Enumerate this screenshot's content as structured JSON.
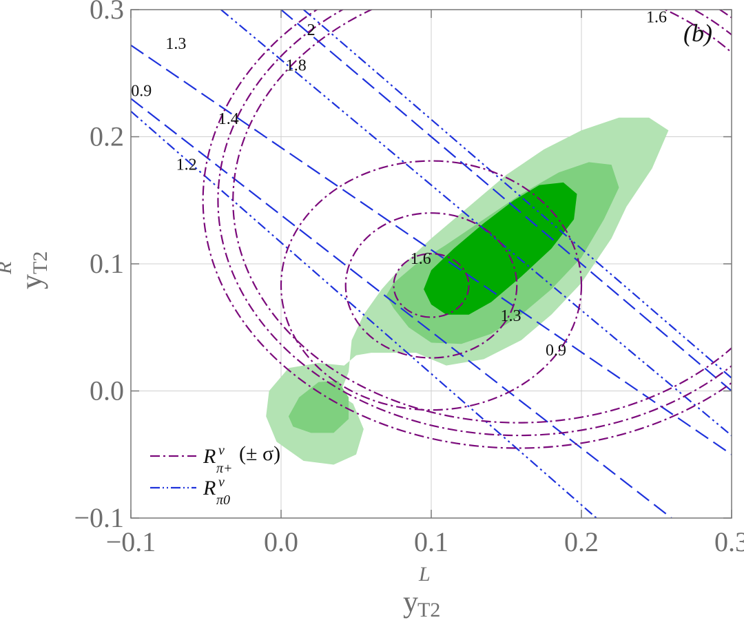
{
  "chart_data": {
    "type": "contour",
    "panel_label": "(b)",
    "xlabel": {
      "main": "y",
      "sup": "L",
      "sub": "T2"
    },
    "ylabel": {
      "main": "y",
      "sup": "R",
      "sub": "T2"
    },
    "xlim": [
      -0.1,
      0.3
    ],
    "ylim": [
      -0.1,
      0.3
    ],
    "x_ticks": [
      -0.1,
      0.0,
      0.1,
      0.2,
      0.3
    ],
    "x_tick_labels": [
      "−0.1",
      "0.0",
      "0.1",
      "0.2",
      "0.3"
    ],
    "y_ticks": [
      -0.1,
      0.0,
      0.1,
      0.2,
      0.3
    ],
    "y_tick_labels": [
      "−0.1",
      "0.0",
      "0.1",
      "0.2",
      "0.3"
    ],
    "grid": true,
    "legend_position": "bottom-left",
    "colors": {
      "green_outer": "#b3e3b3",
      "green_mid": "#7fd07f",
      "green_inner": "#00aa00",
      "purple": "#7b0a7b",
      "blue": "#1e32dc"
    },
    "legend": [
      {
        "style": "dash-dot",
        "color": "#7b0a7b",
        "label": {
          "main": "R",
          "sup": "ν",
          "sub": "π+",
          "suffix": "(± σ)"
        }
      },
      {
        "style": "dash-dot-dot",
        "color": "#1e32dc",
        "label": {
          "main": "R",
          "sup": "ν",
          "sub": "π0",
          "suffix": ""
        }
      }
    ],
    "regions": [
      {
        "level": "outer",
        "color": "#b3e3b3",
        "points": [
          [
            0.09,
            0.03
          ],
          [
            0.11,
            0.02
          ],
          [
            0.135,
            0.025
          ],
          [
            0.16,
            0.04
          ],
          [
            0.18,
            0.06
          ],
          [
            0.2,
            0.085
          ],
          [
            0.22,
            0.12
          ],
          [
            0.23,
            0.145
          ],
          [
            0.247,
            0.175
          ],
          [
            0.258,
            0.205
          ],
          [
            0.245,
            0.215
          ],
          [
            0.225,
            0.215
          ],
          [
            0.2,
            0.205
          ],
          [
            0.175,
            0.19
          ],
          [
            0.15,
            0.17
          ],
          [
            0.125,
            0.145
          ],
          [
            0.1,
            0.12
          ],
          [
            0.082,
            0.1
          ],
          [
            0.067,
            0.08
          ],
          [
            0.055,
            0.06
          ],
          [
            0.047,
            0.04
          ],
          [
            0.045,
            0.015
          ],
          [
            0.04,
            0.0
          ],
          [
            0.035,
            0.0
          ],
          [
            0.048,
            -0.01
          ],
          [
            0.055,
            -0.03
          ],
          [
            0.05,
            -0.05
          ],
          [
            0.035,
            -0.058
          ],
          [
            0.015,
            -0.055
          ],
          [
            -0.003,
            -0.04
          ],
          [
            -0.01,
            -0.02
          ],
          [
            -0.008,
            0.0
          ],
          [
            0.005,
            0.018
          ],
          [
            0.025,
            0.022
          ],
          [
            0.042,
            0.02
          ],
          [
            0.05,
            0.028
          ],
          [
            0.06,
            0.03
          ],
          [
            0.075,
            0.03
          ]
        ]
      },
      {
        "level": "mid",
        "color": "#7fd07f",
        "points": [
          [
            0.075,
            0.065
          ],
          [
            0.085,
            0.05
          ],
          [
            0.1,
            0.038
          ],
          [
            0.12,
            0.037
          ],
          [
            0.14,
            0.045
          ],
          [
            0.16,
            0.06
          ],
          [
            0.18,
            0.08
          ],
          [
            0.2,
            0.105
          ],
          [
            0.215,
            0.135
          ],
          [
            0.225,
            0.16
          ],
          [
            0.22,
            0.178
          ],
          [
            0.205,
            0.18
          ],
          [
            0.185,
            0.172
          ],
          [
            0.16,
            0.155
          ],
          [
            0.135,
            0.135
          ],
          [
            0.11,
            0.115
          ],
          [
            0.09,
            0.1
          ],
          [
            0.075,
            0.085
          ],
          [
            0.07,
            0.075
          ]
        ]
      },
      {
        "level": "mid",
        "color": "#7fd07f",
        "points": [
          [
            0.005,
            -0.02
          ],
          [
            0.012,
            -0.005
          ],
          [
            0.025,
            0.007
          ],
          [
            0.038,
            0.008
          ],
          [
            0.045,
            -0.005
          ],
          [
            0.045,
            -0.022
          ],
          [
            0.035,
            -0.033
          ],
          [
            0.02,
            -0.033
          ],
          [
            0.008,
            -0.028
          ]
        ]
      },
      {
        "level": "inner",
        "color": "#00aa00",
        "points": [
          [
            0.095,
            0.08
          ],
          [
            0.1,
            0.068
          ],
          [
            0.11,
            0.06
          ],
          [
            0.125,
            0.06
          ],
          [
            0.14,
            0.07
          ],
          [
            0.16,
            0.09
          ],
          [
            0.18,
            0.112
          ],
          [
            0.195,
            0.135
          ],
          [
            0.197,
            0.155
          ],
          [
            0.188,
            0.164
          ],
          [
            0.172,
            0.162
          ],
          [
            0.155,
            0.15
          ],
          [
            0.135,
            0.132
          ],
          [
            0.115,
            0.112
          ],
          [
            0.1,
            0.095
          ]
        ]
      }
    ],
    "ellipses": [
      {
        "series": "R_pi_plus",
        "role": "+sigma",
        "cx": 0.1,
        "cy": 0.083,
        "rx": 0.1,
        "ry": 0.098
      },
      {
        "series": "R_pi_plus",
        "role": "central",
        "cx": 0.1,
        "cy": 0.083,
        "rx": 0.057,
        "ry": 0.057
      },
      {
        "series": "R_pi_plus",
        "role": "-sigma",
        "cx": 0.1,
        "cy": 0.083,
        "rx": 0.025,
        "ry": 0.025
      },
      {
        "series": "R_pi_plus",
        "role": "+sigma",
        "cx": 0.158,
        "cy": 0.15,
        "rx": 0.19,
        "ry": 0.175
      },
      {
        "series": "R_pi_plus",
        "role": "central",
        "cx": 0.158,
        "cy": 0.15,
        "rx": 0.2,
        "ry": 0.185
      },
      {
        "series": "R_pi_plus",
        "role": "-sigma",
        "cx": 0.158,
        "cy": 0.15,
        "rx": 0.21,
        "ry": 0.195
      }
    ],
    "lines": [
      {
        "series": "R_pi0",
        "style": "dash",
        "from": [
          -0.1,
          0.23
        ],
        "to": [
          0.26,
          -0.1
        ]
      },
      {
        "series": "R_pi0",
        "style": "dash-dot-dot",
        "from": [
          -0.1,
          0.22
        ],
        "to": [
          0.21,
          -0.1
        ]
      },
      {
        "series": "R_pi0",
        "style": "dash",
        "from": [
          -0.1,
          0.272
        ],
        "to": [
          0.3,
          -0.05
        ]
      },
      {
        "series": "R_pi0",
        "style": "dash-dot-dot",
        "from": [
          -0.04,
          0.3
        ],
        "to": [
          0.31,
          -0.045
        ]
      },
      {
        "series": "R_pi0",
        "style": "dash",
        "from": [
          0.0,
          0.3
        ],
        "to": [
          0.3,
          -0.0
        ]
      },
      {
        "series": "R_pi0",
        "style": "dash-dot-dot",
        "from": [
          0.015,
          0.3
        ],
        "to": [
          0.31,
          0.0
        ]
      }
    ],
    "contour_labels": [
      {
        "text": "1.6",
        "x": 0.25,
        "y": 0.29
      },
      {
        "text": "2",
        "x": 0.02,
        "y": 0.28
      },
      {
        "text": "1.3",
        "x": -0.07,
        "y": 0.269
      },
      {
        "text": "1.8",
        "x": 0.01,
        "y": 0.252
      },
      {
        "text": "0.9",
        "x": -0.093,
        "y": 0.232
      },
      {
        "text": "1.4",
        "x": -0.035,
        "y": 0.21
      },
      {
        "text": "1.2",
        "x": -0.063,
        "y": 0.174
      },
      {
        "text": "1.6",
        "x": 0.093,
        "y": 0.1
      },
      {
        "text": "1.3",
        "x": 0.153,
        "y": 0.055
      },
      {
        "text": "0.9",
        "x": 0.183,
        "y": 0.028
      }
    ]
  }
}
